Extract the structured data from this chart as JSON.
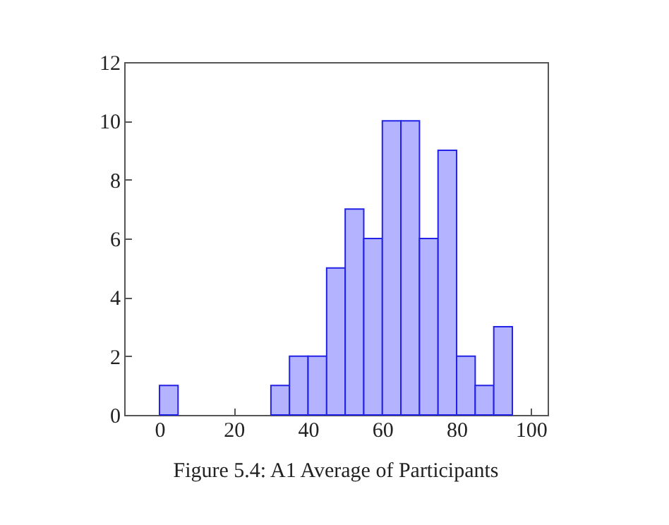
{
  "chart_data": {
    "type": "histogram",
    "annotations": [
      "Figure 5.4: A1 Average of Participants"
    ],
    "bins": [
      0,
      5,
      10,
      15,
      20,
      25,
      30,
      35,
      40,
      45,
      50,
      55,
      60,
      65,
      70,
      75,
      80,
      85,
      90,
      95
    ],
    "values": [
      1,
      0,
      0,
      0,
      0,
      0,
      1,
      2,
      2,
      5,
      7,
      6,
      10,
      10,
      6,
      9,
      2,
      1,
      3
    ],
    "color": "#b3b3ff",
    "xlim": [
      -9.5,
      104.5
    ],
    "xticks": [
      0,
      20,
      40,
      60,
      80,
      100
    ],
    "ylim": [
      0,
      12
    ],
    "yticks": [
      0,
      2,
      4,
      6,
      8,
      10,
      12
    ],
    "grid": false
  }
}
